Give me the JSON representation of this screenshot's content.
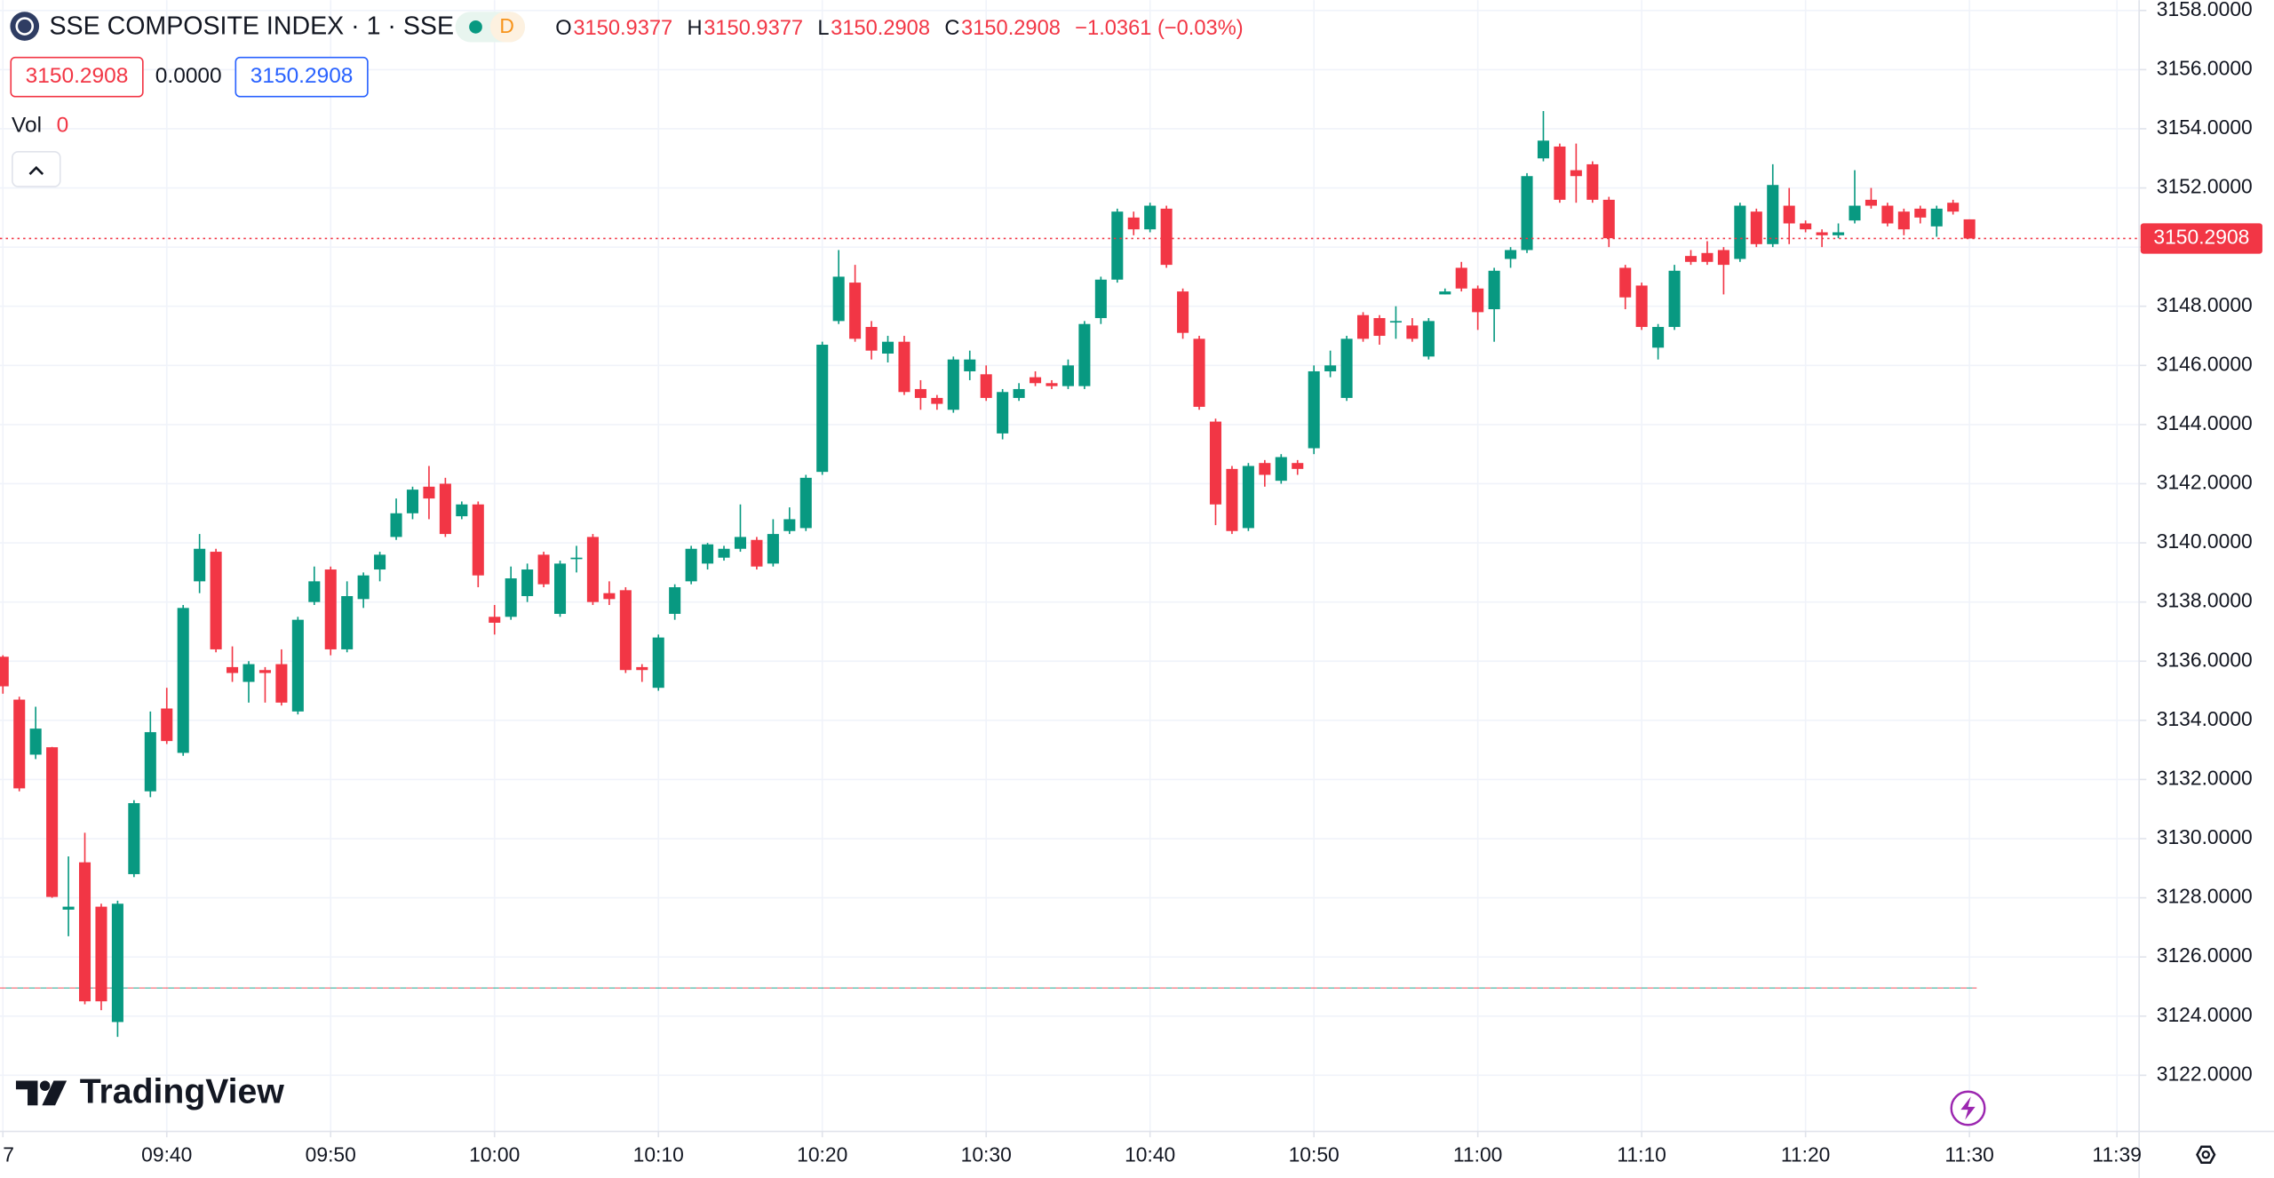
{
  "chart_data": {
    "type": "candlestick",
    "title": "SSE COMPOSITE INDEX · 1 · SSE",
    "interval_badge": "D",
    "legend_ohlc": [
      {
        "key": "O",
        "value": "3150.9377"
      },
      {
        "key": "H",
        "value": "3150.9377"
      },
      {
        "key": "L",
        "value": "3150.2908"
      },
      {
        "key": "C",
        "value": "3150.2908"
      }
    ],
    "change": "−1.0361 (−0.03%)",
    "price_boxes": [
      "3150.2908",
      "0.0000",
      "3150.2908"
    ],
    "volume_label": "Vol",
    "volume_value": "0",
    "brand": "TradingView",
    "up_color": "#089981",
    "down_color": "#f23645",
    "grid": true,
    "last_price": {
      "value": 3150.2908,
      "label": "3150.2908"
    },
    "reference_line": 3124.95,
    "xlim": [
      "09:30",
      "11:40"
    ],
    "xticks": [
      {
        "value": "09:30",
        "label": "7"
      },
      "09:40",
      "09:50",
      "10:00",
      "10:10",
      "10:20",
      "10:30",
      "10:40",
      "10:50",
      "11:00",
      "11:10",
      "11:20",
      "11:30",
      "11:39"
    ],
    "ylim": [
      3120.1,
      3158.35
    ],
    "yticks": [
      {
        "value": 3122,
        "label": "3122.0000"
      },
      {
        "value": 3124,
        "label": "3124.0000"
      },
      {
        "value": 3126,
        "label": "3126.0000"
      },
      {
        "value": 3128,
        "label": "3128.0000"
      },
      {
        "value": 3130,
        "label": "3130.0000"
      },
      {
        "value": 3132,
        "label": "3132.0000"
      },
      {
        "value": 3134,
        "label": "3134.0000"
      },
      {
        "value": 3136,
        "label": "3136.0000"
      },
      {
        "value": 3138,
        "label": "3138.0000"
      },
      {
        "value": 3140,
        "label": "3140.0000"
      },
      {
        "value": 3142,
        "label": "3142.0000"
      },
      {
        "value": 3144,
        "label": "3144.0000"
      },
      {
        "value": 3146,
        "label": "3146.0000"
      },
      {
        "value": 3148,
        "label": "3148.0000"
      },
      {
        "value": 3150,
        "label": "3150.0000"
      },
      {
        "value": 3152,
        "label": "3152.0000"
      },
      {
        "value": 3154,
        "label": "3154.0000"
      },
      {
        "value": 3156,
        "label": "3156.0000"
      },
      {
        "value": 3158,
        "label": "3158.0000"
      }
    ],
    "x": [
      "09:30",
      "09:31",
      "09:32",
      "09:33",
      "09:34",
      "09:35",
      "09:36",
      "09:37",
      "09:38",
      "09:39",
      "09:40",
      "09:41",
      "09:42",
      "09:43",
      "09:44",
      "09:45",
      "09:46",
      "09:47",
      "09:48",
      "09:49",
      "09:50",
      "09:51",
      "09:52",
      "09:53",
      "09:54",
      "09:55",
      "09:56",
      "09:57",
      "09:58",
      "09:59",
      "10:00",
      "10:01",
      "10:02",
      "10:03",
      "10:04",
      "10:05",
      "10:06",
      "10:07",
      "10:08",
      "10:09",
      "10:10",
      "10:11",
      "10:12",
      "10:13",
      "10:14",
      "10:15",
      "10:16",
      "10:17",
      "10:18",
      "10:19",
      "10:20",
      "10:21",
      "10:22",
      "10:23",
      "10:24",
      "10:25",
      "10:26",
      "10:27",
      "10:28",
      "10:29",
      "10:30",
      "10:31",
      "10:32",
      "10:33",
      "10:34",
      "10:35",
      "10:36",
      "10:37",
      "10:38",
      "10:39",
      "10:40",
      "10:41",
      "10:42",
      "10:43",
      "10:44",
      "10:45",
      "10:46",
      "10:47",
      "10:48",
      "10:49",
      "10:50",
      "10:51",
      "10:52",
      "10:53",
      "10:54",
      "10:55",
      "10:56",
      "10:57",
      "10:58",
      "10:59",
      "11:00",
      "11:01",
      "11:02",
      "11:03",
      "11:04",
      "11:05",
      "11:06",
      "11:07",
      "11:08",
      "11:09",
      "11:10",
      "11:11",
      "11:12",
      "11:13",
      "11:14",
      "11:15",
      "11:16",
      "11:17",
      "11:18",
      "11:19",
      "11:20",
      "11:21",
      "11:22",
      "11:23",
      "11:24",
      "11:25",
      "11:26",
      "11:27",
      "11:28",
      "11:29",
      "11:30"
    ],
    "open": [
      3136.15,
      3134.7,
      3132.84,
      3133.09,
      3127.6,
      3129.2,
      3127.7,
      3123.8,
      3128.8,
      3131.6,
      3134.4,
      3132.9,
      3138.7,
      3139.7,
      3135.8,
      3135.3,
      3135.7,
      3135.9,
      3134.3,
      3138.0,
      3139.1,
      3136.4,
      3138.1,
      3139.1,
      3140.2,
      3141.0,
      3141.9,
      3142.0,
      3140.9,
      3141.3,
      3137.5,
      3137.5,
      3138.2,
      3139.6,
      3137.6,
      3139.45,
      3140.2,
      3138.3,
      3138.4,
      3135.8,
      3135.1,
      3137.6,
      3138.7,
      3139.3,
      3139.5,
      3139.8,
      3140.1,
      3139.3,
      3140.4,
      3140.5,
      3142.4,
      3147.5,
      3148.8,
      3147.3,
      3146.4,
      3146.8,
      3145.2,
      3144.9,
      3144.5,
      3145.8,
      3145.7,
      3143.7,
      3144.9,
      3145.6,
      3145.4,
      3145.3,
      3145.3,
      3147.6,
      3148.9,
      3151.0,
      3150.6,
      3151.3,
      3148.5,
      3146.9,
      3144.1,
      3142.5,
      3140.5,
      3142.7,
      3142.1,
      3142.7,
      3143.2,
      3145.8,
      3144.9,
      3147.7,
      3147.6,
      3147.45,
      3147.35,
      3146.3,
      3148.4,
      3149.3,
      3148.6,
      3147.9,
      3149.6,
      3149.9,
      3153.0,
      3153.4,
      3152.6,
      3152.8,
      3151.6,
      3149.3,
      3148.7,
      3146.6,
      3147.3,
      3149.7,
      3149.8,
      3149.9,
      3149.6,
      3151.2,
      3150.1,
      3151.4,
      3150.8,
      3150.5,
      3150.4,
      3150.9,
      3151.6,
      3151.4,
      3151.2,
      3151.3,
      3150.7,
      3151.5,
      3150.9377
    ],
    "high": [
      3136.2,
      3134.8,
      3134.46,
      3133.1,
      3129.4,
      3130.2,
      3127.8,
      3127.9,
      3131.3,
      3134.3,
      3135.1,
      3137.9,
      3140.3,
      3139.8,
      3136.5,
      3136.0,
      3135.8,
      3136.4,
      3137.5,
      3139.2,
      3139.2,
      3138.7,
      3139.0,
      3139.7,
      3141.5,
      3141.9,
      3142.6,
      3142.2,
      3141.4,
      3141.4,
      3137.9,
      3139.2,
      3139.3,
      3139.7,
      3139.4,
      3139.9,
      3140.3,
      3138.7,
      3138.5,
      3135.9,
      3136.9,
      3138.6,
      3139.9,
      3140.0,
      3139.9,
      3141.3,
      3140.2,
      3140.8,
      3141.2,
      3142.3,
      3146.8,
      3149.9,
      3149.4,
      3147.5,
      3147.0,
      3147.0,
      3145.5,
      3145.0,
      3146.3,
      3146.5,
      3146.0,
      3145.2,
      3145.4,
      3145.8,
      3145.5,
      3146.2,
      3147.5,
      3149.0,
      3151.3,
      3151.2,
      3151.5,
      3151.4,
      3148.6,
      3147.0,
      3144.2,
      3142.6,
      3142.7,
      3142.8,
      3143.0,
      3142.8,
      3146.0,
      3146.5,
      3147.0,
      3147.8,
      3147.7,
      3148.0,
      3147.6,
      3147.6,
      3148.6,
      3149.5,
      3148.7,
      3149.3,
      3150.0,
      3152.5,
      3154.6,
      3153.5,
      3153.5,
      3152.9,
      3151.7,
      3149.4,
      3148.8,
      3147.4,
      3149.4,
      3149.9,
      3150.2,
      3150.0,
      3151.5,
      3151.3,
      3152.8,
      3152.0,
      3150.9,
      3150.6,
      3150.8,
      3152.6,
      3152.0,
      3151.5,
      3151.3,
      3151.4,
      3151.4,
      3151.6,
      3150.9377
    ],
    "low": [
      3134.9,
      3131.6,
      3132.69,
      3128.0,
      3126.7,
      3124.4,
      3124.2,
      3123.3,
      3128.7,
      3131.4,
      3133.2,
      3132.8,
      3138.3,
      3136.3,
      3135.3,
      3134.6,
      3134.6,
      3134.5,
      3134.2,
      3137.9,
      3136.2,
      3136.3,
      3137.8,
      3138.7,
      3140.1,
      3140.8,
      3140.8,
      3140.2,
      3140.8,
      3138.5,
      3136.9,
      3137.4,
      3138.0,
      3138.5,
      3137.5,
      3139.0,
      3137.9,
      3137.9,
      3135.6,
      3135.3,
      3135.0,
      3137.4,
      3138.6,
      3139.1,
      3139.4,
      3139.7,
      3139.1,
      3139.2,
      3140.3,
      3140.4,
      3142.3,
      3147.4,
      3146.8,
      3146.2,
      3146.1,
      3145.0,
      3144.5,
      3144.5,
      3144.4,
      3145.5,
      3144.8,
      3143.5,
      3144.8,
      3145.3,
      3145.2,
      3145.2,
      3145.2,
      3147.4,
      3148.8,
      3150.4,
      3150.5,
      3149.3,
      3146.9,
      3144.5,
      3140.6,
      3140.3,
      3140.4,
      3141.9,
      3142.0,
      3142.3,
      3143.0,
      3145.6,
      3144.8,
      3146.8,
      3146.7,
      3146.9,
      3146.8,
      3146.2,
      3148.4,
      3148.5,
      3147.2,
      3146.8,
      3149.3,
      3149.8,
      3152.9,
      3151.5,
      3151.5,
      3151.5,
      3150.0,
      3147.9,
      3147.2,
      3146.2,
      3147.2,
      3149.4,
      3149.4,
      3148.4,
      3149.5,
      3150.0,
      3150.0,
      3150.1,
      3150.5,
      3150.0,
      3150.3,
      3150.8,
      3151.3,
      3150.7,
      3150.4,
      3150.8,
      3150.35,
      3151.1,
      3150.2908
    ],
    "close": [
      3135.15,
      3131.7,
      3133.72,
      3128.03,
      3127.7,
      3124.5,
      3124.5,
      3127.8,
      3131.2,
      3133.6,
      3133.3,
      3137.8,
      3139.8,
      3136.4,
      3135.6,
      3135.9,
      3135.6,
      3134.6,
      3137.4,
      3138.7,
      3136.4,
      3138.2,
      3138.9,
      3139.6,
      3141.0,
      3141.8,
      3141.5,
      3140.3,
      3141.3,
      3138.9,
      3137.3,
      3138.8,
      3139.1,
      3138.6,
      3139.3,
      3139.5,
      3138.0,
      3138.1,
      3135.7,
      3135.7,
      3136.8,
      3138.5,
      3139.8,
      3139.95,
      3139.8,
      3140.2,
      3139.2,
      3140.3,
      3140.8,
      3142.2,
      3146.7,
      3149.0,
      3146.9,
      3146.5,
      3146.8,
      3145.1,
      3144.9,
      3144.7,
      3146.2,
      3146.2,
      3144.9,
      3145.1,
      3145.2,
      3145.4,
      3145.3,
      3146.0,
      3147.4,
      3148.9,
      3151.2,
      3150.6,
      3151.4,
      3149.4,
      3147.1,
      3144.6,
      3141.3,
      3140.4,
      3142.6,
      3142.3,
      3142.9,
      3142.5,
      3145.8,
      3146.0,
      3146.9,
      3146.9,
      3147.0,
      3147.5,
      3146.9,
      3147.5,
      3148.5,
      3148.6,
      3147.8,
      3149.2,
      3149.9,
      3152.4,
      3153.6,
      3151.6,
      3152.4,
      3151.6,
      3150.3,
      3148.3,
      3147.3,
      3147.3,
      3149.2,
      3149.5,
      3149.5,
      3149.4,
      3151.4,
      3150.1,
      3152.1,
      3150.8,
      3150.6,
      3150.4,
      3150.5,
      3151.4,
      3151.4,
      3150.8,
      3150.6,
      3151.0,
      3151.3,
      3151.2,
      3150.2908
    ]
  }
}
